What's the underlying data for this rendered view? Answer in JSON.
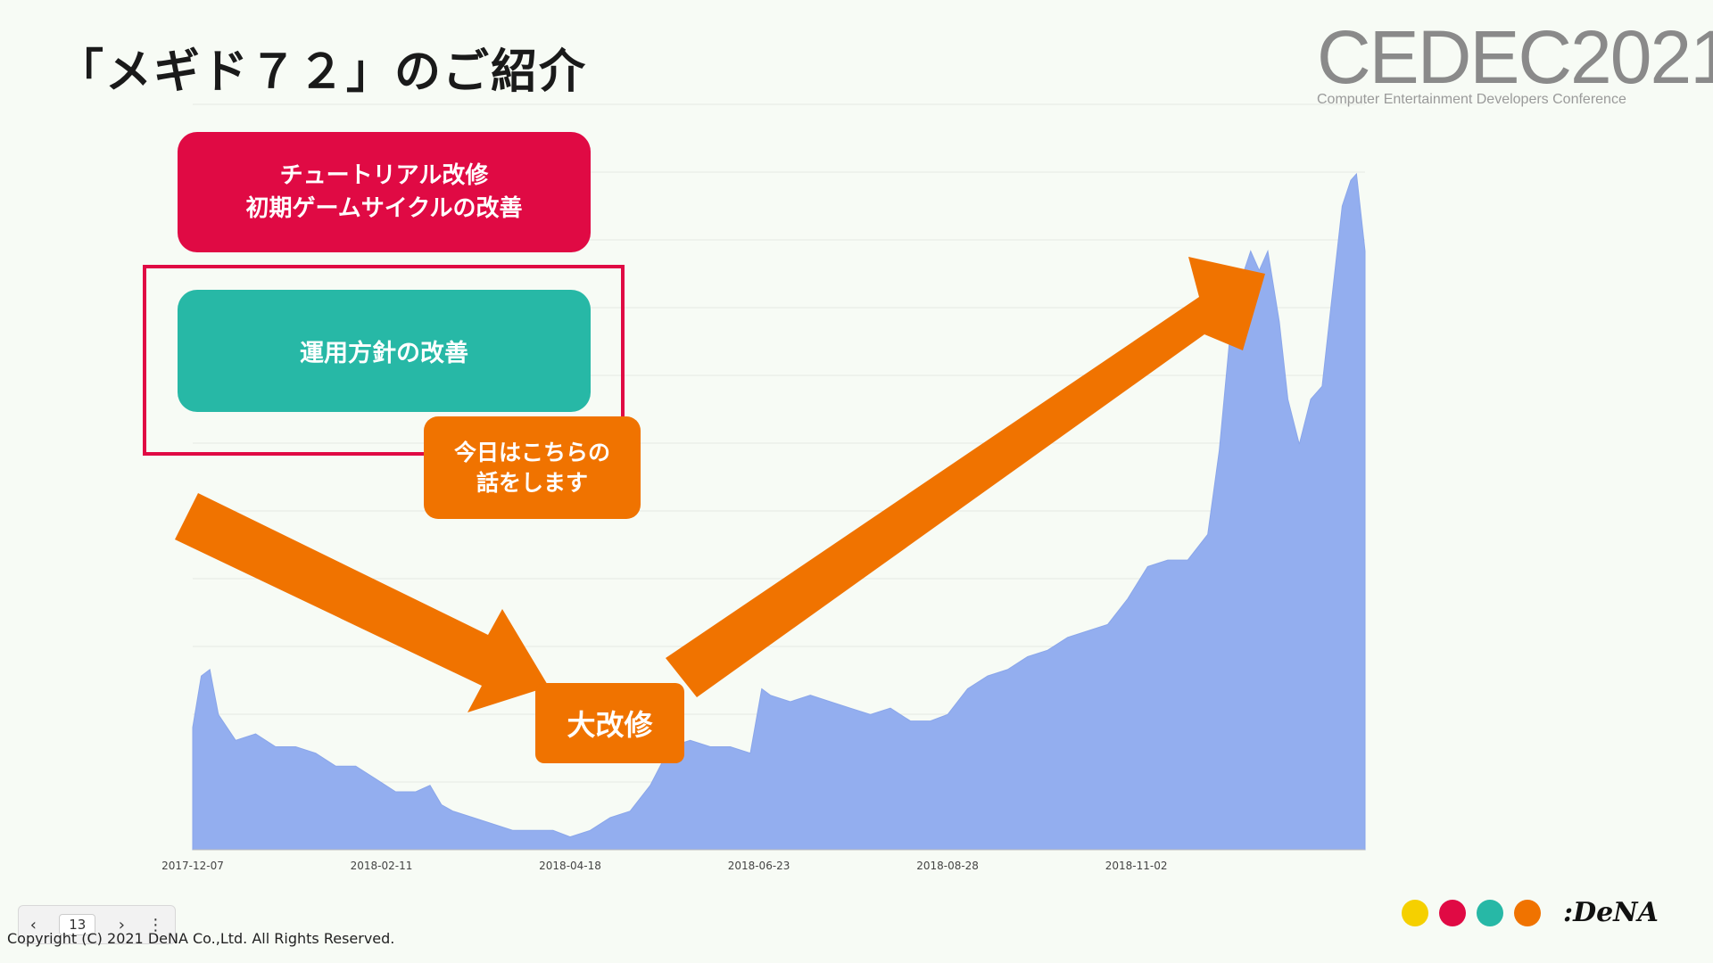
{
  "slide": {
    "title": "「メギド７２」のご紹介",
    "logo_main": "CEDEC2021",
    "logo_sub": "Computer Entertainment Developers Conference",
    "copyright": "Copyright (C) 2021 DeNA Co.,Ltd. All Rights Reserved.",
    "brand": ":DeNA"
  },
  "boxes": {
    "red_line1": "チュートリアル改修",
    "red_line2": "初期ゲームサイクルの改善",
    "teal": "運用方針の改善",
    "note_line1": "今日はこちらの",
    "note_line2": "話をします",
    "renovation": "大改修"
  },
  "pager": {
    "prev_icon": "chevron-left-icon",
    "page_number": "13",
    "next_icon": "chevron-right-icon",
    "menu_icon": "vertical-dots-icon"
  },
  "brand_dots": [
    "#f5d000",
    "#e00a44",
    "#27b8a6",
    "#f07300"
  ],
  "colors": {
    "area": "#93aeef",
    "arrow": "#f07300",
    "red": "#e00a44",
    "teal": "#27b8a6"
  },
  "chart_data": {
    "type": "area",
    "title": "",
    "xlabel": "",
    "ylabel": "",
    "x_tick_labels": [
      "2017-12-07",
      "2018-02-11",
      "2018-04-18",
      "2018-06-23",
      "2018-08-28",
      "2018-11-02"
    ],
    "x_range": [
      "2017-12-07",
      "2019-01-21"
    ],
    "y_range": [
      0,
      100
    ],
    "y_tick_labels": [],
    "grid": true,
    "legend": "none",
    "series": [
      {
        "x": [
          "2017-12-07",
          "2017-12-10",
          "2017-12-13",
          "2017-12-16",
          "2017-12-22",
          "2017-12-29",
          "2018-01-05",
          "2018-01-12",
          "2018-01-19",
          "2018-01-26",
          "2018-02-02",
          "2018-02-09",
          "2018-02-16",
          "2018-02-23",
          "2018-02-28",
          "2018-03-04",
          "2018-03-08",
          "2018-03-15",
          "2018-03-22",
          "2018-03-29",
          "2018-04-05",
          "2018-04-12",
          "2018-04-18",
          "2018-04-25",
          "2018-05-02",
          "2018-05-09",
          "2018-05-16",
          "2018-05-23",
          "2018-05-30",
          "2018-06-06",
          "2018-06-13",
          "2018-06-20",
          "2018-06-24",
          "2018-06-27",
          "2018-07-04",
          "2018-07-11",
          "2018-07-18",
          "2018-07-25",
          "2018-08-01",
          "2018-08-08",
          "2018-08-15",
          "2018-08-22",
          "2018-08-28",
          "2018-09-04",
          "2018-09-11",
          "2018-09-18",
          "2018-09-25",
          "2018-10-02",
          "2018-10-09",
          "2018-10-16",
          "2018-10-23",
          "2018-10-30",
          "2018-11-06",
          "2018-11-13",
          "2018-11-20",
          "2018-11-27",
          "2018-12-01",
          "2018-12-05",
          "2018-12-09",
          "2018-12-12",
          "2018-12-15",
          "2018-12-18",
          "2018-12-22",
          "2018-12-25",
          "2018-12-29",
          "2019-01-02",
          "2019-01-06",
          "2019-01-10",
          "2019-01-13",
          "2019-01-16",
          "2019-01-18",
          "2019-01-21"
        ],
        "y": [
          19,
          27,
          28,
          21,
          17,
          18,
          16,
          16,
          15,
          13,
          13,
          11,
          9,
          9,
          10,
          7,
          6,
          5,
          4,
          3,
          3,
          3,
          2,
          3,
          5,
          6,
          10,
          16,
          17,
          16,
          16,
          15,
          25,
          24,
          23,
          24,
          23,
          22,
          21,
          22,
          20,
          20,
          21,
          25,
          27,
          28,
          30,
          31,
          33,
          34,
          35,
          39,
          44,
          45,
          45,
          49,
          62,
          81,
          89,
          93,
          90,
          93,
          82,
          70,
          63,
          70,
          72,
          88,
          100,
          104,
          105,
          93
        ]
      }
    ]
  }
}
